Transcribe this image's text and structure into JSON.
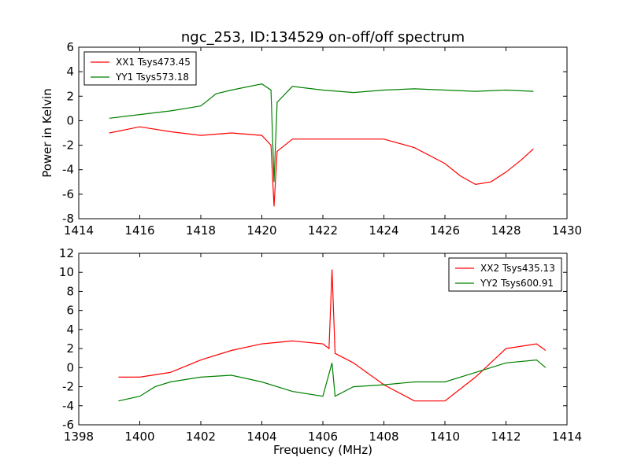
{
  "chart_data": [
    {
      "type": "line",
      "title": "ngc_253, ID:134529 on-off/off spectrum",
      "xlabel": "",
      "ylabel": "Power in Kelvin",
      "xlim": [
        1414,
        1430
      ],
      "ylim": [
        -8,
        6
      ],
      "xticks": [
        1414,
        1416,
        1418,
        1420,
        1422,
        1424,
        1426,
        1428,
        1430
      ],
      "yticks": [
        -8,
        -6,
        -4,
        -2,
        0,
        2,
        4,
        6
      ],
      "legend_position": "top-left",
      "series": [
        {
          "name": "XX1 Tsys473.45",
          "color": "#ff0000",
          "x": [
            1415.0,
            1416.0,
            1417.0,
            1418.0,
            1419.0,
            1420.0,
            1420.3,
            1420.4,
            1420.5,
            1421.0,
            1422.0,
            1423.0,
            1424.0,
            1425.0,
            1426.0,
            1426.5,
            1427.0,
            1427.5,
            1428.0,
            1428.5,
            1428.9
          ],
          "values": [
            -1.0,
            -0.5,
            -0.9,
            -1.2,
            -1.0,
            -1.2,
            -2.0,
            -7.0,
            -2.5,
            -1.5,
            -1.5,
            -1.5,
            -1.5,
            -2.2,
            -3.5,
            -4.5,
            -5.2,
            -5.0,
            -4.2,
            -3.2,
            -2.3
          ]
        },
        {
          "name": "YY1 Tsys573.18",
          "color": "#008000",
          "x": [
            1415.0,
            1416.0,
            1417.0,
            1418.0,
            1418.5,
            1419.0,
            1420.0,
            1420.3,
            1420.4,
            1420.5,
            1421.0,
            1422.0,
            1423.0,
            1424.0,
            1425.0,
            1426.0,
            1427.0,
            1428.0,
            1428.9
          ],
          "values": [
            0.2,
            0.5,
            0.8,
            1.2,
            2.2,
            2.5,
            3.0,
            2.5,
            -5.0,
            1.5,
            2.8,
            2.5,
            2.3,
            2.5,
            2.6,
            2.5,
            2.4,
            2.5,
            2.4
          ]
        }
      ]
    },
    {
      "type": "line",
      "title": "",
      "xlabel": "Frequency (MHz)",
      "ylabel": "",
      "xlim": [
        1398,
        1414
      ],
      "ylim": [
        -6,
        12
      ],
      "xticks": [
        1398,
        1400,
        1402,
        1404,
        1406,
        1408,
        1410,
        1412,
        1414
      ],
      "yticks": [
        -6,
        -4,
        -2,
        0,
        2,
        4,
        6,
        8,
        10,
        12
      ],
      "legend_position": "top-right",
      "series": [
        {
          "name": "XX2 Tsys435.13",
          "color": "#ff0000",
          "x": [
            1399.3,
            1400.0,
            1401.0,
            1402.0,
            1403.0,
            1404.0,
            1405.0,
            1406.0,
            1406.2,
            1406.3,
            1406.4,
            1407.0,
            1408.0,
            1409.0,
            1410.0,
            1411.0,
            1412.0,
            1413.0,
            1413.3
          ],
          "values": [
            -1.0,
            -1.0,
            -0.5,
            0.8,
            1.8,
            2.5,
            2.8,
            2.5,
            2.0,
            10.3,
            1.5,
            0.5,
            -1.8,
            -3.5,
            -3.5,
            -1.0,
            2.0,
            2.5,
            1.8
          ]
        },
        {
          "name": "YY2 Tsys600.91",
          "color": "#008000",
          "x": [
            1399.3,
            1400.0,
            1400.5,
            1401.0,
            1402.0,
            1403.0,
            1404.0,
            1405.0,
            1406.0,
            1406.3,
            1406.4,
            1407.0,
            1408.0,
            1409.0,
            1410.0,
            1411.0,
            1412.0,
            1413.0,
            1413.3
          ],
          "values": [
            -3.5,
            -3.0,
            -2.0,
            -1.5,
            -1.0,
            -0.8,
            -1.5,
            -2.5,
            -3.0,
            0.5,
            -3.0,
            -2.0,
            -1.8,
            -1.5,
            -1.5,
            -0.5,
            0.5,
            0.8,
            0.0
          ]
        }
      ]
    }
  ]
}
